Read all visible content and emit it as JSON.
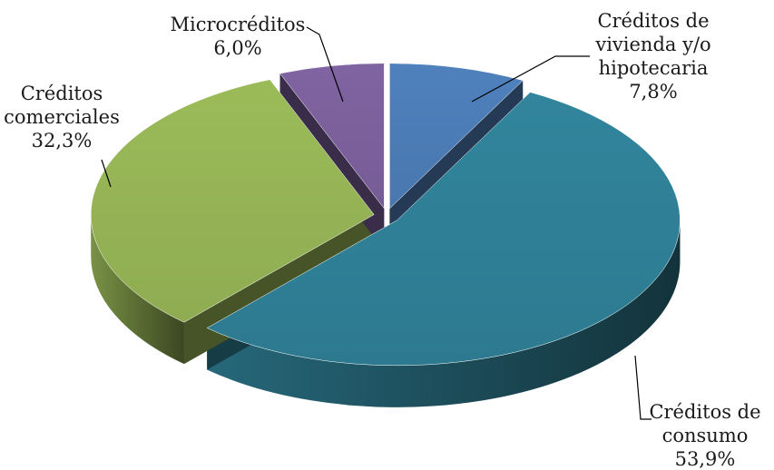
{
  "chart_data": {
    "type": "pie",
    "title": "",
    "three_d": true,
    "exploded": true,
    "legend": "none",
    "slices": [
      {
        "label_lines": [
          "Créditos de",
          "vivienda y/o",
          "hipotecaria"
        ],
        "value": 7.8,
        "value_label": "7,8%",
        "color": "#4f81bd"
      },
      {
        "label_lines": [
          "Créditos de",
          "consumo"
        ],
        "value": 53.9,
        "value_label": "53,9%",
        "color": "#31859c"
      },
      {
        "label_lines": [
          "Créditos",
          "comerciales"
        ],
        "value": 32.3,
        "value_label": "32,3%",
        "color": "#9bbb59"
      },
      {
        "label_lines": [
          "Microcréditos"
        ],
        "value": 6.0,
        "value_label": "6,0%",
        "color": "#8064a2"
      }
    ]
  }
}
